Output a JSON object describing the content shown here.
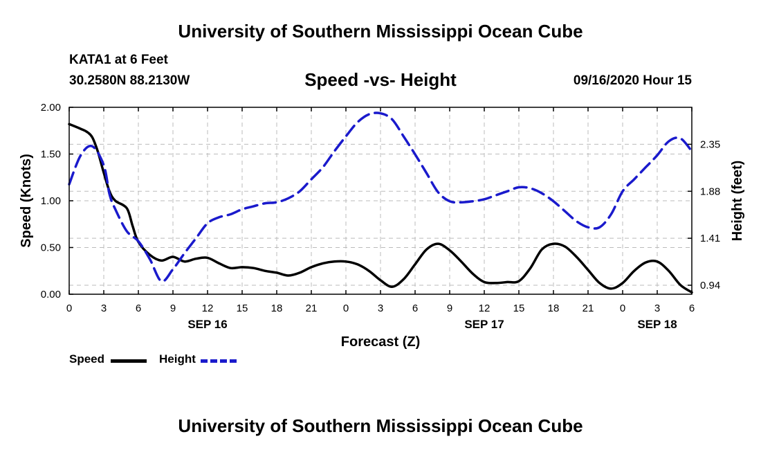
{
  "header": {
    "title": "University of Southern Mississippi Ocean Cube",
    "station": "KATA1 at 6 Feet",
    "coordinates": "30.2580N 88.2130W",
    "plot_title": "Speed -vs- Height",
    "datetime": "09/16/2020 Hour 15"
  },
  "footer": {
    "title": "University of Southern Mississippi Ocean Cube"
  },
  "legend": {
    "speed_label": "Speed",
    "height_label": "Height"
  },
  "colors": {
    "speed": "#000000",
    "height": "#1a1acc",
    "grid": "#bbbbbb"
  },
  "chart_data": {
    "type": "line",
    "title": "Speed -vs- Height",
    "xlabel": "Forecast (Z)",
    "ylabel": "Speed (Knots)",
    "y2label": "Height (feet)",
    "x_range": [
      0,
      54
    ],
    "x_tick_hours": [
      0,
      3,
      6,
      9,
      12,
      15,
      18,
      21,
      24,
      27,
      30,
      33,
      36,
      39,
      42,
      45,
      48,
      51,
      54
    ],
    "x_tick_labels": [
      "0",
      "3",
      "6",
      "9",
      "12",
      "15",
      "18",
      "21",
      "0",
      "3",
      "6",
      "9",
      "12",
      "15",
      "18",
      "21",
      "0",
      "3",
      "6"
    ],
    "date_labels": [
      {
        "hour": 12,
        "label": "SEP 16"
      },
      {
        "hour": 36,
        "label": "SEP 17"
      },
      {
        "hour": 51,
        "label": "SEP 18"
      }
    ],
    "y_range": [
      0,
      2
    ],
    "y_ticks": [
      0,
      0.5,
      1.0,
      1.5,
      2.0
    ],
    "y_tick_labels": [
      "0.00",
      "0.50",
      "1.00",
      "1.50",
      "2.00"
    ],
    "y2_range": [
      0.85,
      2.72
    ],
    "y2_ticks": [
      0.94,
      1.41,
      1.88,
      2.35
    ],
    "y2_tick_labels": [
      "0.94",
      "1.41",
      "1.88",
      "2.35"
    ],
    "series": [
      {
        "name": "Speed",
        "axis": "left",
        "style": "solid",
        "x": [
          0,
          1,
          1.5,
          2,
          2.5,
          3,
          3.5,
          4,
          5,
          5.5,
          6,
          7,
          8,
          9,
          10,
          11,
          12,
          13,
          14,
          15,
          16,
          17,
          18,
          19,
          20,
          21,
          22,
          23,
          24,
          25,
          26,
          27,
          28,
          29,
          30,
          31,
          32,
          33,
          34,
          35,
          36,
          37,
          38,
          39,
          40,
          41,
          42,
          43,
          44,
          45,
          46,
          47,
          48,
          49,
          50,
          51,
          52,
          53,
          54
        ],
        "values": [
          1.82,
          1.77,
          1.74,
          1.68,
          1.52,
          1.3,
          1.1,
          1.0,
          0.92,
          0.73,
          0.56,
          0.42,
          0.36,
          0.4,
          0.35,
          0.38,
          0.39,
          0.33,
          0.28,
          0.29,
          0.28,
          0.25,
          0.23,
          0.2,
          0.23,
          0.29,
          0.33,
          0.35,
          0.35,
          0.32,
          0.25,
          0.15,
          0.08,
          0.16,
          0.32,
          0.48,
          0.54,
          0.47,
          0.35,
          0.22,
          0.13,
          0.12,
          0.13,
          0.14,
          0.28,
          0.48,
          0.54,
          0.51,
          0.4,
          0.26,
          0.12,
          0.06,
          0.12,
          0.25,
          0.34,
          0.35,
          0.25,
          0.1,
          0.02
        ]
      },
      {
        "name": "Height",
        "axis": "right",
        "style": "dashed",
        "x": [
          0,
          1,
          2,
          3,
          3.5,
          4,
          5,
          6,
          7,
          8,
          9,
          10,
          11,
          12,
          13,
          14,
          15,
          16,
          17,
          18,
          19,
          20,
          21,
          22,
          23,
          24,
          25,
          26,
          27,
          28,
          29,
          30,
          31,
          32,
          33,
          34,
          35,
          36,
          37,
          38,
          39,
          40,
          41,
          42,
          43,
          44,
          45,
          46,
          47,
          48,
          49,
          50,
          51,
          52,
          53,
          54
        ],
        "values": [
          1.95,
          2.24,
          2.33,
          2.14,
          1.85,
          1.7,
          1.48,
          1.38,
          1.2,
          0.98,
          1.1,
          1.26,
          1.41,
          1.56,
          1.62,
          1.65,
          1.7,
          1.73,
          1.76,
          1.77,
          1.81,
          1.88,
          2.0,
          2.12,
          2.28,
          2.43,
          2.57,
          2.65,
          2.66,
          2.6,
          2.43,
          2.25,
          2.06,
          1.87,
          1.78,
          1.77,
          1.78,
          1.8,
          1.84,
          1.88,
          1.92,
          1.91,
          1.86,
          1.78,
          1.68,
          1.58,
          1.52,
          1.52,
          1.65,
          1.88,
          2.0,
          2.12,
          2.24,
          2.38,
          2.41,
          2.28
        ]
      }
    ]
  }
}
